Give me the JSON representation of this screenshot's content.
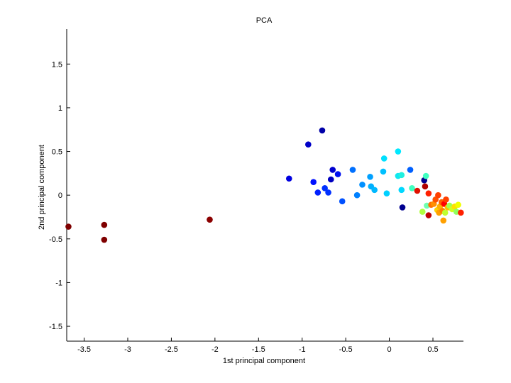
{
  "chart_data": {
    "type": "scatter",
    "title": "PCA",
    "xlabel": "1st principal component",
    "ylabel": "2nd principal component",
    "xlim": [
      -3.7,
      0.85
    ],
    "ylim": [
      -1.67,
      1.9
    ],
    "xticks": [
      -3.5,
      -3,
      -2.5,
      -2,
      -1.5,
      -1,
      -0.5,
      0,
      0.5
    ],
    "xtick_labels": [
      "-3.5",
      "-3",
      "-2.5",
      "-2",
      "-1.5",
      "-1",
      "-0.5",
      "0",
      "0.5"
    ],
    "yticks": [
      -1.5,
      -1,
      -0.5,
      0,
      0.5,
      1,
      1.5
    ],
    "ytick_labels": [
      "-1.5",
      "-1",
      "-0.5",
      "0",
      "0.5",
      "1",
      "1.5"
    ],
    "grid": false,
    "legend": "none",
    "colormap": "jet",
    "points": [
      {
        "x": -3.68,
        "y": -0.36,
        "color": "#7f0000"
      },
      {
        "x": -3.27,
        "y": -0.34,
        "color": "#7f0000"
      },
      {
        "x": -3.27,
        "y": -0.51,
        "color": "#7f0000"
      },
      {
        "x": -2.06,
        "y": -0.28,
        "color": "#8b0000"
      },
      {
        "x": -1.15,
        "y": 0.19,
        "color": "#0000e0"
      },
      {
        "x": -0.93,
        "y": 0.58,
        "color": "#0000c8"
      },
      {
        "x": -0.77,
        "y": 0.74,
        "color": "#0000a8"
      },
      {
        "x": -0.87,
        "y": 0.15,
        "color": "#0010ff"
      },
      {
        "x": -0.82,
        "y": 0.03,
        "color": "#0020ff"
      },
      {
        "x": -0.74,
        "y": 0.08,
        "color": "#0030ff"
      },
      {
        "x": -0.7,
        "y": 0.03,
        "color": "#0030ff"
      },
      {
        "x": -0.67,
        "y": 0.18,
        "color": "#0000c0"
      },
      {
        "x": -0.65,
        "y": 0.29,
        "color": "#0000d0"
      },
      {
        "x": -0.59,
        "y": 0.24,
        "color": "#0010f0"
      },
      {
        "x": -0.54,
        "y": -0.07,
        "color": "#0050ff"
      },
      {
        "x": -0.42,
        "y": 0.29,
        "color": "#0070ff"
      },
      {
        "x": -0.37,
        "y": 0.0,
        "color": "#0080ff"
      },
      {
        "x": -0.31,
        "y": 0.12,
        "color": "#0090ff"
      },
      {
        "x": -0.22,
        "y": 0.21,
        "color": "#00a0ff"
      },
      {
        "x": -0.21,
        "y": 0.1,
        "color": "#00b0ff"
      },
      {
        "x": -0.17,
        "y": 0.06,
        "color": "#00b8ff"
      },
      {
        "x": -0.07,
        "y": 0.27,
        "color": "#00c0ff"
      },
      {
        "x": -0.06,
        "y": 0.42,
        "color": "#00e0ff"
      },
      {
        "x": -0.03,
        "y": 0.02,
        "color": "#00d0ff"
      },
      {
        "x": 0.1,
        "y": 0.5,
        "color": "#00e8ff"
      },
      {
        "x": 0.1,
        "y": 0.22,
        "color": "#10e8f0"
      },
      {
        "x": 0.14,
        "y": 0.23,
        "color": "#20f0e0"
      },
      {
        "x": 0.14,
        "y": 0.06,
        "color": "#00d8ff"
      },
      {
        "x": 0.15,
        "y": -0.14,
        "color": "#00008f"
      },
      {
        "x": 0.24,
        "y": 0.29,
        "color": "#0060ff"
      },
      {
        "x": 0.26,
        "y": 0.08,
        "color": "#40ffc0"
      },
      {
        "x": 0.32,
        "y": 0.05,
        "color": "#e01000"
      },
      {
        "x": 0.38,
        "y": -0.19,
        "color": "#b0ff40"
      },
      {
        "x": 0.4,
        "y": 0.17,
        "color": "#00008f"
      },
      {
        "x": 0.41,
        "y": 0.1,
        "color": "#b00000"
      },
      {
        "x": 0.42,
        "y": 0.22,
        "color": "#40ffc0"
      },
      {
        "x": 0.43,
        "y": -0.12,
        "color": "#70ffb0"
      },
      {
        "x": 0.45,
        "y": 0.02,
        "color": "#ff2000"
      },
      {
        "x": 0.45,
        "y": -0.23,
        "color": "#c00000"
      },
      {
        "x": 0.48,
        "y": -0.11,
        "color": "#ff7000"
      },
      {
        "x": 0.51,
        "y": -0.1,
        "color": "#ff9000"
      },
      {
        "x": 0.53,
        "y": -0.05,
        "color": "#ff5000"
      },
      {
        "x": 0.55,
        "y": -0.17,
        "color": "#ffd000"
      },
      {
        "x": 0.56,
        "y": 0.0,
        "color": "#ff4000"
      },
      {
        "x": 0.57,
        "y": -0.2,
        "color": "#ffa000"
      },
      {
        "x": 0.58,
        "y": -0.13,
        "color": "#ffb000"
      },
      {
        "x": 0.6,
        "y": -0.08,
        "color": "#ff6000"
      },
      {
        "x": 0.61,
        "y": -0.18,
        "color": "#ff8000"
      },
      {
        "x": 0.62,
        "y": -0.29,
        "color": "#ffa000"
      },
      {
        "x": 0.63,
        "y": -0.1,
        "color": "#ff0000"
      },
      {
        "x": 0.64,
        "y": -0.2,
        "color": "#c0ff30"
      },
      {
        "x": 0.65,
        "y": -0.05,
        "color": "#ff4000"
      },
      {
        "x": 0.67,
        "y": -0.14,
        "color": "#ffc000"
      },
      {
        "x": 0.69,
        "y": -0.12,
        "color": "#a0ff50"
      },
      {
        "x": 0.72,
        "y": -0.16,
        "color": "#d0ff20"
      },
      {
        "x": 0.75,
        "y": -0.13,
        "color": "#ffe000"
      },
      {
        "x": 0.77,
        "y": -0.19,
        "color": "#90ff60"
      },
      {
        "x": 0.79,
        "y": -0.11,
        "color": "#f0ff00"
      },
      {
        "x": 0.82,
        "y": -0.2,
        "color": "#ff2000"
      }
    ]
  }
}
